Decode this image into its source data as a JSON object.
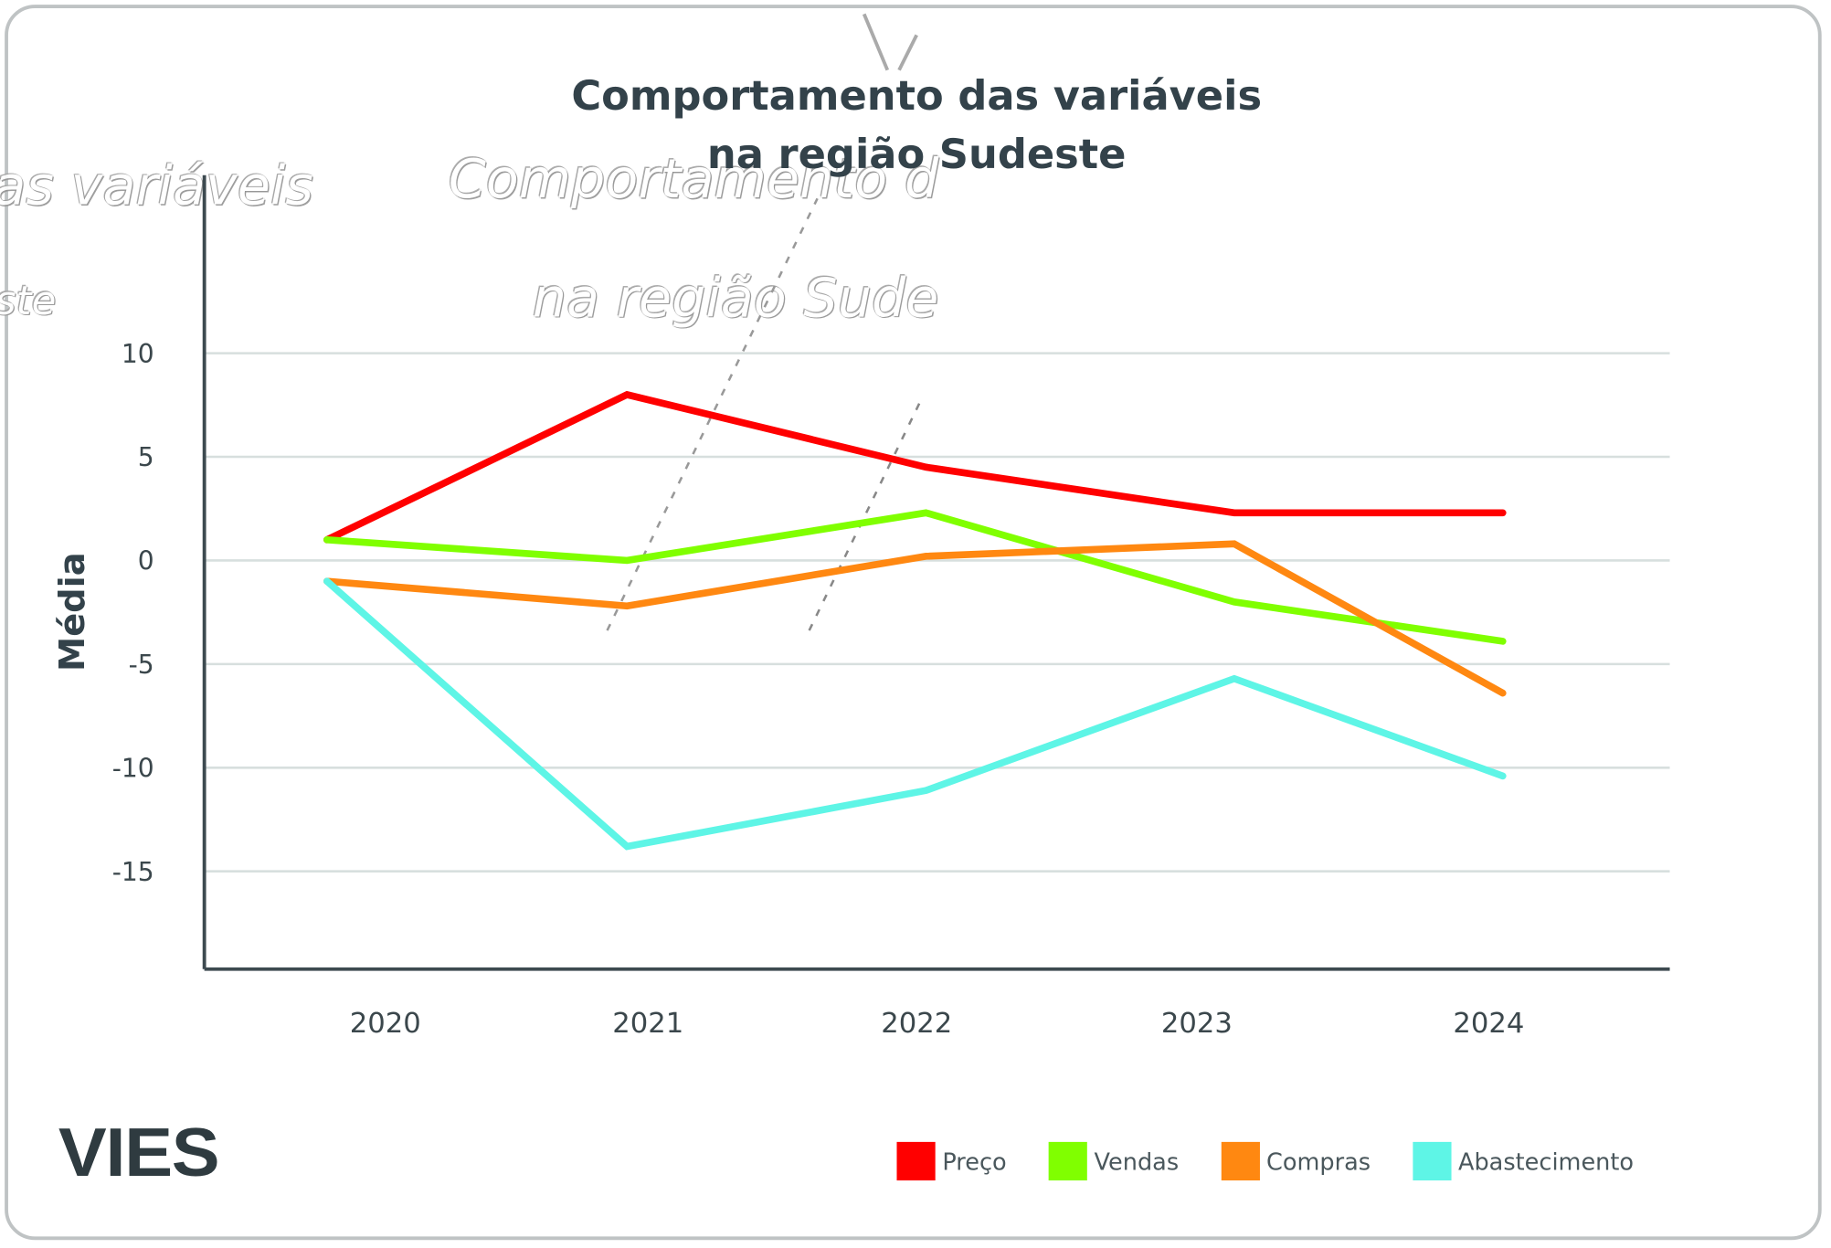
{
  "chart_data": {
    "type": "line",
    "title": "Comportamento das variáveis na região Sudeste",
    "title_lines": [
      "Comportamento das variáveis",
      "na região Sudeste"
    ],
    "xlabel": "",
    "ylabel": "Média",
    "x": [
      "2020",
      "2021",
      "2022",
      "2023",
      "2024"
    ],
    "yticks": [
      10,
      5,
      0,
      -5,
      -10,
      -15
    ],
    "ytick_labels": [
      "10",
      "5",
      "0",
      "-5",
      "-10",
      "-15"
    ],
    "ylim": [
      -19.5,
      18.5
    ],
    "grid": true,
    "legend_position": "bottom-right",
    "series": [
      {
        "name": "Preço",
        "color": "#ff0000",
        "values": [
          1.0,
          8.0,
          4.5,
          2.3,
          2.3
        ]
      },
      {
        "name": "Vendas",
        "color": "#80ff00",
        "values": [
          1.0,
          0.0,
          2.3,
          -2.0,
          -3.9
        ]
      },
      {
        "name": "Compras",
        "color": "#ff8811",
        "values": [
          -1.0,
          -2.2,
          0.2,
          0.8,
          -6.4
        ]
      },
      {
        "name": "Abastecimento",
        "color": "#5ef5e6",
        "values": [
          -1.0,
          -13.8,
          -11.1,
          -5.7,
          -10.4
        ]
      }
    ]
  },
  "ghost_text": {
    "left_fragment": "as variáveis",
    "left_fragment_2": "ste",
    "center_fragment": "Comportamento d",
    "center_fragment_2": "na região Sude"
  },
  "brand": {
    "logo_text": "VIES"
  }
}
